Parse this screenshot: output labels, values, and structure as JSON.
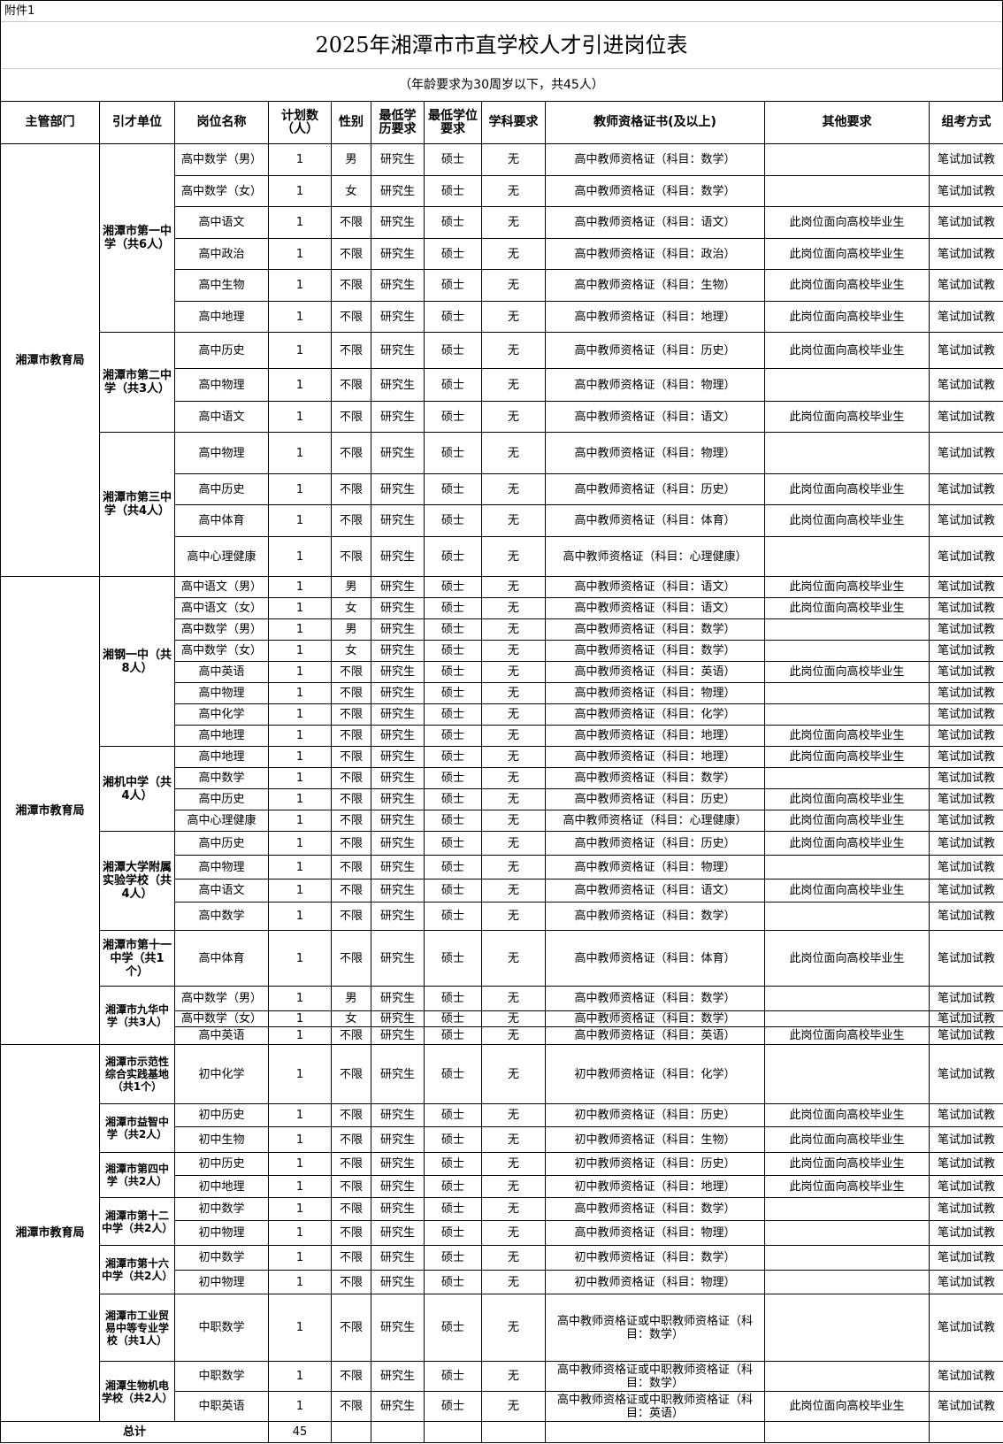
{
  "header": {
    "attachment": "附件1",
    "title": "2025年湘潭市市直学校人才引进岗位表",
    "subtitle": "（年龄要求为30周岁以下，共45人）"
  },
  "table": {
    "columns": [
      "主管部门",
      "引才单位",
      "岗位名称",
      "计划数（人）",
      "性别",
      "最低学历要求",
      "最低学位要求",
      "学科要求",
      "教师资格证书(及以上)",
      "其他要求",
      "组考方式"
    ],
    "groups": [
      {
        "department": "湘潭市教育局",
        "units": [
          {
            "name": "湘潭市第一中学（共6人）",
            "rows": [
              [
                "高中数学（男）",
                1,
                "男",
                "研究生",
                "硕士",
                "无",
                "高中教师资格证（科目：数学）",
                null,
                "笔试加试教"
              ],
              [
                "高中数学（女）",
                1,
                "女",
                "研究生",
                "硕士",
                "无",
                "高中教师资格证（科目：数学）",
                null,
                "笔试加试教"
              ],
              [
                "高中语文",
                1,
                "不限",
                "研究生",
                "硕士",
                "无",
                "高中教师资格证（科目：语文）",
                "此岗位面向高校毕业生",
                "笔试加试教"
              ],
              [
                "高中政治",
                1,
                "不限",
                "研究生",
                "硕士",
                "无",
                "高中教师资格证（科目：政治）",
                "此岗位面向高校毕业生",
                "笔试加试教"
              ],
              [
                "高中生物",
                1,
                "不限",
                "研究生",
                "硕士",
                "无",
                "高中教师资格证（科目：生物）",
                "此岗位面向高校毕业生",
                "笔试加试教"
              ],
              [
                "高中地理",
                1,
                "不限",
                "研究生",
                "硕士",
                "无",
                "高中教师资格证（科目：地理）",
                "此岗位面向高校毕业生",
                "笔试加试教"
              ]
            ]
          },
          {
            "name": "湘潭市第二中学（共3人）",
            "rows": [
              [
                "高中历史",
                1,
                "不限",
                "研究生",
                "硕士",
                "无",
                "高中教师资格证（科目：历史）",
                "此岗位面向高校毕业生",
                "笔试加试教"
              ],
              [
                "高中物理",
                1,
                "不限",
                "研究生",
                "硕士",
                "无",
                "高中教师资格证（科目：物理）",
                null,
                "笔试加试教"
              ],
              [
                "高中语文",
                1,
                "不限",
                "研究生",
                "硕士",
                "无",
                "高中教师资格证（科目：语文）",
                "此岗位面向高校毕业生",
                "笔试加试教"
              ]
            ]
          },
          {
            "name": "湘潭市第三中学（共4人）",
            "rows": [
              [
                "高中物理",
                1,
                "不限",
                "研究生",
                "硕士",
                "无",
                "高中教师资格证（科目：物理）",
                null,
                "笔试加试教"
              ],
              [
                "高中历史",
                1,
                "不限",
                "研究生",
                "硕士",
                "无",
                "高中教师资格证（科目：历史）",
                "此岗位面向高校毕业生",
                "笔试加试教"
              ],
              [
                "高中体育",
                1,
                "不限",
                "研究生",
                "硕士",
                "无",
                "高中教师资格证（科目：体育）",
                "此岗位面向高校毕业生",
                "笔试加试教"
              ],
              [
                "高中心理健康",
                1,
                "不限",
                "研究生",
                "硕士",
                "无",
                "高中教师资格证（科目：心理健康）",
                null,
                "笔试加试教"
              ]
            ]
          }
        ]
      },
      {
        "department": "湘潭市教育局",
        "units": [
          {
            "name": "湘钢一中（共8人）",
            "rows": [
              [
                "高中语文（男）",
                1,
                "男",
                "研究生",
                "硕士",
                "无",
                "高中教师资格证（科目：语文）",
                "此岗位面向高校毕业生",
                "笔试加试教"
              ],
              [
                "高中语文（女）",
                1,
                "女",
                "研究生",
                "硕士",
                "无",
                "高中教师资格证（科目：语文）",
                "此岗位面向高校毕业生",
                "笔试加试教"
              ],
              [
                "高中数学（男）",
                1,
                "男",
                "研究生",
                "硕士",
                "无",
                "高中教师资格证（科目：数学）",
                null,
                "笔试加试教"
              ],
              [
                "高中数学（女）",
                1,
                "女",
                "研究生",
                "硕士",
                "无",
                "高中教师资格证（科目：数学）",
                null,
                "笔试加试教"
              ],
              [
                "高中英语",
                1,
                "不限",
                "研究生",
                "硕士",
                "无",
                "高中教师资格证（科目：英语）",
                "此岗位面向高校毕业生",
                "笔试加试教"
              ],
              [
                "高中物理",
                1,
                "不限",
                "研究生",
                "硕士",
                "无",
                "高中教师资格证（科目：物理）",
                null,
                "笔试加试教"
              ],
              [
                "高中化学",
                1,
                "不限",
                "研究生",
                "硕士",
                "无",
                "高中教师资格证（科目：化学）",
                null,
                "笔试加试教"
              ],
              [
                "高中地理",
                1,
                "不限",
                "研究生",
                "硕士",
                "无",
                "高中教师资格证（科目：地理）",
                "此岗位面向高校毕业生",
                "笔试加试教"
              ]
            ]
          },
          {
            "name": "湘机中学（共4人）",
            "rows": [
              [
                "高中地理",
                1,
                "不限",
                "研究生",
                "硕士",
                "无",
                "高中教师资格证（科目：地理）",
                "此岗位面向高校毕业生",
                "笔试加试教"
              ],
              [
                "高中数学",
                1,
                "不限",
                "研究生",
                "硕士",
                "无",
                "高中教师资格证（科目：数学）",
                null,
                "笔试加试教"
              ],
              [
                "高中历史",
                1,
                "不限",
                "研究生",
                "硕士",
                "无",
                "高中教师资格证（科目：历史）",
                "此岗位面向高校毕业生",
                "笔试加试教"
              ],
              [
                "高中心理健康",
                1,
                "不限",
                "研究生",
                "硕士",
                "无",
                "高中教师资格证（科目：心理健康）",
                "此岗位面向高校毕业生",
                "笔试加试教"
              ]
            ]
          },
          {
            "name": "湘潭大学附属实验学校（共4人）",
            "rows": [
              [
                "高中历史",
                1,
                "不限",
                "研究生",
                "硕士",
                "无",
                "高中教师资格证（科目：历史）",
                "此岗位面向高校毕业生",
                "笔试加试教"
              ],
              [
                "高中物理",
                1,
                "不限",
                "研究生",
                "硕士",
                "无",
                "高中教师资格证（科目：物理）",
                null,
                "笔试加试教"
              ],
              [
                "高中语文",
                1,
                "不限",
                "研究生",
                "硕士",
                "无",
                "高中教师资格证（科目：语文）",
                "此岗位面向高校毕业生",
                "笔试加试教"
              ],
              [
                "高中数学",
                1,
                "不限",
                "研究生",
                "硕士",
                "无",
                "高中教师资格证（科目：数学）",
                null,
                "笔试加试教"
              ]
            ]
          },
          {
            "name": "湘潭市第十一中学（共1个）",
            "rows": [
              [
                "高中体育",
                1,
                "不限",
                "研究生",
                "硕士",
                "无",
                "高中教师资格证（科目：体育）",
                "此岗位面向高校毕业生",
                "笔试加试教"
              ]
            ]
          },
          {
            "name": "湘潭市九华中学（共3人）",
            "rows": [
              [
                "高中数学（男）",
                1,
                "男",
                "研究生",
                "硕士",
                "无",
                "高中教师资格证（科目：数学）",
                null,
                "笔试加试教"
              ],
              [
                "高中数学（女）",
                1,
                "女",
                "研究生",
                "硕士",
                "无",
                "高中教师资格证（科目：数学）",
                null,
                "笔试加试教"
              ],
              [
                "高中英语",
                1,
                "不限",
                "研究生",
                "硕士",
                "无",
                "高中教师资格证（科目：英语）",
                "此岗位面向高校毕业生",
                "笔试加试教"
              ]
            ]
          }
        ]
      },
      {
        "department": "湘潭市教育局",
        "units": [
          {
            "name": "湘潭市示范性综合实践基地（共1个）",
            "rows": [
              [
                "初中化学",
                1,
                "不限",
                "研究生",
                "硕士",
                "无",
                "初中教师资格证（科目：化学）",
                null,
                "笔试加试教"
              ]
            ]
          },
          {
            "name": "湘潭市益智中学（共2人）",
            "rows": [
              [
                "初中历史",
                1,
                "不限",
                "研究生",
                "硕士",
                "无",
                "初中教师资格证（科目：历史）",
                "此岗位面向高校毕业生",
                "笔试加试教"
              ],
              [
                "初中生物",
                1,
                "不限",
                "研究生",
                "硕士",
                "无",
                "初中教师资格证（科目：生物）",
                "此岗位面向高校毕业生",
                "笔试加试教"
              ]
            ]
          },
          {
            "name": "湘潭市第四中学（共2人）",
            "rows": [
              [
                "初中历史",
                1,
                "不限",
                "研究生",
                "硕士",
                "无",
                "初中教师资格证（科目：历史）",
                "此岗位面向高校毕业生",
                "笔试加试教"
              ],
              [
                "初中地理",
                1,
                "不限",
                "研究生",
                "硕士",
                "无",
                "初中教师资格证（科目：地理）",
                "此岗位面向高校毕业生",
                "笔试加试教"
              ]
            ]
          },
          {
            "name": "湘潭市第十二中学（共2人）",
            "rows": [
              [
                "初中数学",
                1,
                "不限",
                "研究生",
                "硕士",
                "无",
                "高中教师资格证（科目：数学）",
                null,
                "笔试加试教"
              ],
              [
                "初中物理",
                1,
                "不限",
                "研究生",
                "硕士",
                "无",
                "高中教师资格证（科目：物理）",
                null,
                "笔试加试教"
              ]
            ]
          },
          {
            "name": "湘潭市第十六中学（共2人）",
            "rows": [
              [
                "初中数学",
                1,
                "不限",
                "研究生",
                "硕士",
                "无",
                "初中教师资格证（科目：数学）",
                null,
                "笔试加试教"
              ],
              [
                "初中物理",
                1,
                "不限",
                "研究生",
                "硕士",
                "无",
                "初中教师资格证（科目：物理）",
                null,
                "笔试加试教"
              ]
            ]
          },
          {
            "name": "湘潭市工业贸易中等专业学校（共1人）",
            "rows": [
              [
                "中职数学",
                1,
                "不限",
                "研究生",
                "硕士",
                "无",
                "高中教师资格证或中职教师资格证（科目：数学）",
                null,
                "笔试加试教"
              ]
            ]
          },
          {
            "name": "湘潭生物机电学校（共2人）",
            "rows": [
              [
                "中职数学",
                1,
                "不限",
                "研究生",
                "硕士",
                "无",
                "高中教师资格证或中职教师资格证（科目：数学）",
                null,
                "笔试加试教"
              ],
              [
                "中职英语",
                1,
                "不限",
                "研究生",
                "硕士",
                "无",
                "高中教师资格证或中职教师资格证（科目：英语）",
                "此岗位面向高校毕业生",
                "笔试加试教"
              ]
            ]
          }
        ]
      }
    ],
    "total": {
      "label": "总计",
      "value": 45
    }
  }
}
